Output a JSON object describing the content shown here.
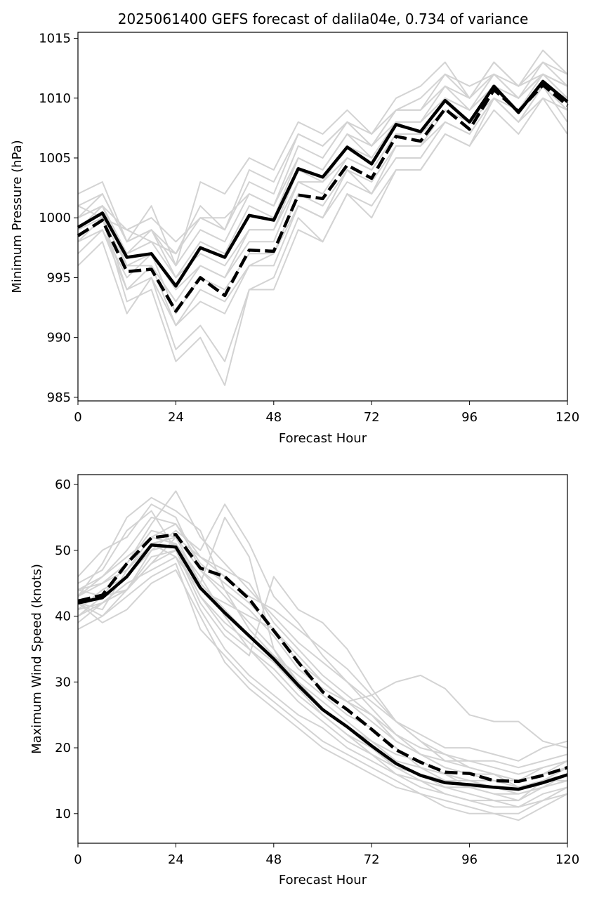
{
  "figure_title": "2025061400 GEFS forecast of dalila04e, 0.734 of variance",
  "colors": {
    "member": "#d3d3d3",
    "mean": "#000000",
    "axis": "#000000"
  },
  "chart_data": [
    {
      "type": "line",
      "title": "2025061400 GEFS forecast of dalila04e, 0.734 of variance",
      "xlabel": "Forecast Hour",
      "ylabel": "Minimum Pressure (hPa)",
      "xlim": [
        0,
        120
      ],
      "ylim": [
        984.7,
        1015.5
      ],
      "xticks": [
        0,
        24,
        48,
        72,
        96,
        120
      ],
      "yticks": [
        985,
        990,
        995,
        1000,
        1005,
        1010,
        1015
      ],
      "grid": false,
      "x": [
        0,
        6,
        12,
        18,
        24,
        30,
        36,
        42,
        48,
        54,
        60,
        66,
        72,
        78,
        84,
        90,
        96,
        102,
        108,
        114,
        120
      ],
      "series": [
        {
          "style": "solid-black",
          "values": [
            999.2,
            1000.4,
            996.7,
            997.0,
            994.3,
            997.5,
            996.7,
            1000.2,
            999.8,
            1004.1,
            1003.4,
            1005.9,
            1004.5,
            1007.8,
            1007.2,
            1009.8,
            1008.0,
            1011.0,
            1008.8,
            1011.4,
            1009.7
          ]
        },
        {
          "style": "dashed-black",
          "values": [
            998.5,
            999.8,
            995.5,
            995.7,
            992.2,
            995.0,
            993.5,
            997.3,
            997.2,
            1001.9,
            1001.6,
            1004.4,
            1003.3,
            1006.8,
            1006.4,
            1009.1,
            1007.4,
            1010.7,
            1008.9,
            1011.1,
            1009.4
          ]
        },
        {
          "style": "member",
          "values": [
            999,
            1001,
            997,
            998,
            995,
            998,
            997,
            1001,
            1000,
            1005,
            1004,
            1007,
            1005,
            1008,
            1008,
            1011,
            1009,
            1012,
            1010,
            1012,
            1011
          ]
        },
        {
          "style": "member",
          "values": [
            1000,
            1002,
            998,
            999,
            996,
            999,
            998,
            1002,
            1001,
            1006,
            1005,
            1008,
            1006,
            1009,
            1009,
            1012,
            1010,
            1013,
            1011,
            1014,
            1012
          ]
        },
        {
          "style": "member",
          "values": [
            998,
            1000,
            996,
            996,
            993,
            996,
            995,
            998,
            998,
            1003,
            1002,
            1005,
            1004,
            1007,
            1007,
            1009,
            1008,
            1011,
            1009,
            1011,
            1010
          ]
        },
        {
          "style": "member",
          "values": [
            997,
            999,
            994,
            995,
            991,
            994,
            993,
            996,
            996,
            1001,
            1000,
            1003,
            1002,
            1005,
            1005,
            1008,
            1007,
            1010,
            1008,
            1010,
            1009
          ]
        },
        {
          "style": "member",
          "values": [
            1001,
            1000,
            999,
            998,
            997,
            1000,
            999,
            1003,
            1002,
            1007,
            1006,
            1008,
            1007,
            1009,
            1009,
            1011,
            1010,
            1012,
            1010,
            1013,
            1011
          ]
        },
        {
          "style": "member",
          "values": [
            996,
            998,
            992,
            995,
            989,
            991,
            988,
            994,
            994,
            999,
            998,
            1002,
            1000,
            1004,
            1004,
            1007,
            1006,
            1009,
            1007,
            1010,
            1007
          ]
        },
        {
          "style": "member",
          "values": [
            1002,
            1003,
            998,
            1001,
            996,
            1003,
            1002,
            1005,
            1004,
            1008,
            1007,
            1009,
            1007,
            1010,
            1011,
            1013,
            1010,
            1013,
            1011,
            1013,
            1012
          ]
        },
        {
          "style": "member",
          "values": [
            999,
            1000,
            993,
            994,
            988,
            990,
            986,
            994,
            995,
            1000,
            998,
            1002,
            1001,
            1004,
            1004,
            1007,
            1006,
            1010,
            1008,
            1011,
            1008
          ]
        },
        {
          "style": "member",
          "values": [
            1000,
            1001,
            997,
            999,
            995,
            997,
            996,
            999,
            999,
            1004,
            1003,
            1006,
            1005,
            1008,
            1007,
            1010,
            1009,
            1011,
            1009,
            1012,
            1010
          ]
        },
        {
          "style": "member",
          "values": [
            998,
            999,
            995,
            997,
            992,
            995,
            994,
            997,
            997,
            1002,
            1001,
            1004,
            1003,
            1006,
            1006,
            1009,
            1008,
            1010,
            1009,
            1011,
            1009
          ]
        },
        {
          "style": "member",
          "values": [
            1001,
            1002,
            998,
            999,
            997,
            1001,
            999,
            1004,
            1003,
            1007,
            1006,
            1008,
            1006,
            1009,
            1010,
            1012,
            1011,
            1012,
            1011,
            1012,
            1011
          ]
        },
        {
          "style": "member",
          "values": [
            998,
            1000,
            994,
            996,
            991,
            993,
            992,
            996,
            997,
            1001,
            1000,
            1004,
            1002,
            1006,
            1006,
            1008,
            1007,
            1010,
            1008,
            1011,
            1009
          ]
        },
        {
          "style": "member",
          "values": [
            1000,
            1001,
            999,
            1000,
            998,
            1000,
            1000,
            1002,
            1001,
            1005,
            1004,
            1007,
            1006,
            1008,
            1008,
            1010,
            1008,
            1011,
            1010,
            1012,
            1010
          ]
        },
        {
          "style": "member",
          "values": [
            999,
            1001,
            996,
            997,
            994,
            996,
            995,
            999,
            999,
            1003,
            1003,
            1005,
            1004,
            1007,
            1007,
            1010,
            1009,
            1011,
            1010,
            1012,
            1011
          ]
        }
      ]
    },
    {
      "type": "line",
      "xlabel": "Forecast Hour",
      "ylabel": "Maximum Wind Speed (knots)",
      "xlim": [
        0,
        120
      ],
      "ylim": [
        5.5,
        61.5
      ],
      "xticks": [
        0,
        24,
        48,
        72,
        96,
        120
      ],
      "yticks": [
        10,
        20,
        30,
        40,
        50,
        60
      ],
      "grid": false,
      "x": [
        0,
        6,
        12,
        18,
        24,
        30,
        36,
        42,
        48,
        54,
        60,
        66,
        72,
        78,
        84,
        90,
        96,
        102,
        108,
        114,
        120
      ],
      "series": [
        {
          "style": "solid-black",
          "values": [
            42.0,
            42.8,
            46.0,
            50.8,
            50.5,
            44.3,
            40.5,
            37.0,
            33.5,
            29.5,
            25.8,
            23.2,
            20.3,
            17.6,
            15.8,
            14.7,
            14.4,
            14.0,
            13.7,
            14.7,
            15.9
          ]
        },
        {
          "style": "dashed-black",
          "values": [
            42.3,
            43.2,
            48.0,
            51.9,
            52.4,
            47.3,
            46.0,
            42.6,
            37.8,
            33.0,
            28.5,
            25.8,
            22.8,
            19.7,
            17.8,
            16.3,
            16.1,
            15.0,
            14.9,
            15.8,
            17.0
          ]
        },
        {
          "style": "member",
          "values": [
            44,
            46,
            50,
            55,
            54,
            48,
            45,
            42,
            38,
            33,
            30,
            27,
            24,
            21,
            19,
            17,
            16,
            16,
            15,
            17,
            18
          ]
        },
        {
          "style": "member",
          "values": [
            40,
            42,
            44,
            49,
            50,
            43,
            38,
            35,
            32,
            28,
            25,
            22,
            19,
            16,
            15,
            14,
            13,
            12,
            12,
            14,
            16
          ]
        },
        {
          "style": "member",
          "values": [
            46,
            50,
            52,
            57,
            55,
            47,
            44,
            41,
            37,
            32,
            29,
            27,
            28,
            30,
            31,
            29,
            25,
            24,
            24,
            21,
            20
          ]
        },
        {
          "style": "member",
          "values": [
            38,
            40,
            44,
            48,
            52,
            47,
            43,
            39,
            35,
            30,
            26,
            23,
            20,
            17,
            15,
            13,
            12,
            11,
            11,
            13,
            14
          ]
        },
        {
          "style": "member",
          "values": [
            43,
            45,
            48,
            54,
            59,
            52,
            48,
            44,
            40,
            36,
            33,
            30,
            27,
            24,
            22,
            20,
            20,
            19,
            18,
            20,
            21
          ]
        },
        {
          "style": "member",
          "values": [
            42,
            41,
            47,
            52,
            51,
            45,
            55,
            49,
            35,
            29,
            25,
            22,
            20,
            17,
            16,
            14,
            14,
            13,
            12,
            15,
            17
          ]
        },
        {
          "style": "member",
          "values": [
            41,
            44,
            46,
            50,
            53,
            50,
            57,
            51,
            43,
            39,
            34,
            30,
            26,
            22,
            19,
            17,
            16,
            15,
            15,
            16,
            18
          ]
        },
        {
          "style": "member",
          "values": [
            45,
            47,
            53,
            56,
            50,
            42,
            37,
            34,
            46,
            41,
            39,
            35,
            29,
            24,
            21,
            19,
            17,
            16,
            15,
            16,
            17
          ]
        },
        {
          "style": "member",
          "values": [
            39,
            42,
            45,
            47,
            49,
            41,
            35,
            31,
            28,
            25,
            23,
            20,
            18,
            16,
            14,
            13,
            12,
            12,
            11,
            12,
            14
          ]
        },
        {
          "style": "member",
          "values": [
            44,
            45,
            47,
            51,
            52,
            49,
            46,
            43,
            41,
            38,
            35,
            32,
            28,
            24,
            21,
            18,
            17,
            16,
            14,
            15,
            16
          ]
        },
        {
          "style": "member",
          "values": [
            42,
            40,
            43,
            46,
            48,
            38,
            34,
            30,
            27,
            24,
            21,
            19,
            17,
            15,
            13,
            12,
            11,
            10,
            10,
            12,
            13
          ]
        },
        {
          "style": "member",
          "values": [
            43,
            48,
            55,
            58,
            56,
            53,
            44,
            38,
            34,
            30,
            27,
            24,
            21,
            18,
            17,
            15,
            14,
            14,
            13,
            14,
            15
          ]
        },
        {
          "style": "member",
          "values": [
            40,
            43,
            44,
            50,
            51,
            46,
            40,
            35,
            31,
            27,
            24,
            21,
            19,
            17,
            16,
            15,
            15,
            14,
            14,
            15,
            15
          ]
        },
        {
          "style": "member",
          "values": [
            41,
            44,
            46,
            51,
            49,
            44,
            42,
            40,
            38,
            34,
            30,
            27,
            25,
            22,
            20,
            19,
            18,
            18,
            17,
            18,
            19
          ]
        },
        {
          "style": "member",
          "values": [
            42,
            39,
            41,
            45,
            47,
            40,
            33,
            29,
            26,
            23,
            20,
            18,
            16,
            14,
            13,
            11,
            10,
            10,
            9,
            11,
            13
          ]
        },
        {
          "style": "member",
          "values": [
            43,
            46,
            49,
            52,
            54,
            49,
            47,
            45,
            39,
            35,
            31,
            28,
            25,
            21,
            19,
            18,
            18,
            17,
            16,
            17,
            18
          ]
        },
        {
          "style": "member",
          "values": [
            41,
            42,
            44,
            48,
            50,
            43,
            39,
            36,
            33,
            29,
            26,
            23,
            21,
            19,
            18,
            16,
            15,
            15,
            14,
            15,
            16
          ]
        },
        {
          "style": "member",
          "values": [
            44,
            43,
            48,
            53,
            52,
            45,
            41,
            37,
            34,
            31,
            28,
            25,
            23,
            20,
            17,
            16,
            14,
            13,
            13,
            14,
            15
          ]
        }
      ]
    }
  ]
}
